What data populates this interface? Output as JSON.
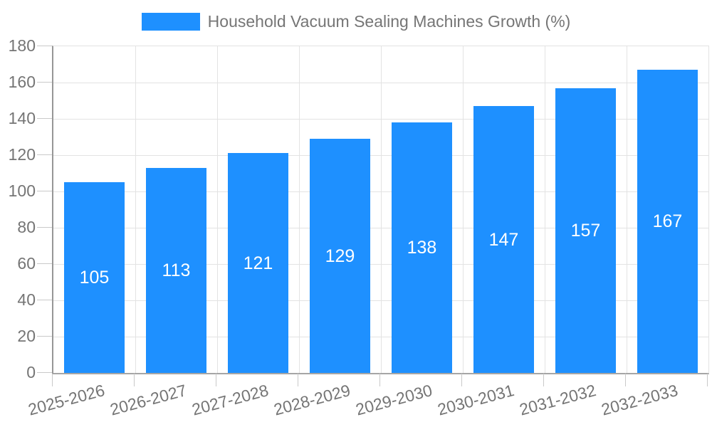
{
  "legend": {
    "label": "Household Vacuum Sealing Machines Growth (%)"
  },
  "colors": {
    "bar": "#1E90FF",
    "axis_text": "#757575",
    "grid": "#e3e3e3",
    "axis_line": "#999999",
    "tick": "#c9c9c9",
    "value_label": "#ffffff",
    "background": "#ffffff"
  },
  "chart_data": {
    "type": "bar",
    "title": "Household Vacuum Sealing Machines Growth (%)",
    "categories": [
      "2025-2026",
      "2026-2027",
      "2027-2028",
      "2028-2029",
      "2029-2030",
      "2030-2031",
      "2031-2032",
      "2032-2033"
    ],
    "values": [
      105,
      113,
      121,
      129,
      138,
      147,
      157,
      167
    ],
    "xlabel": "",
    "ylabel": "",
    "ylim": [
      0,
      180
    ],
    "y_ticks": [
      0,
      20,
      40,
      60,
      80,
      100,
      120,
      140,
      160,
      180
    ],
    "grid": true,
    "legend_position": "top",
    "value_label_position": "inside-center",
    "x_label_rotation_deg": -15
  }
}
